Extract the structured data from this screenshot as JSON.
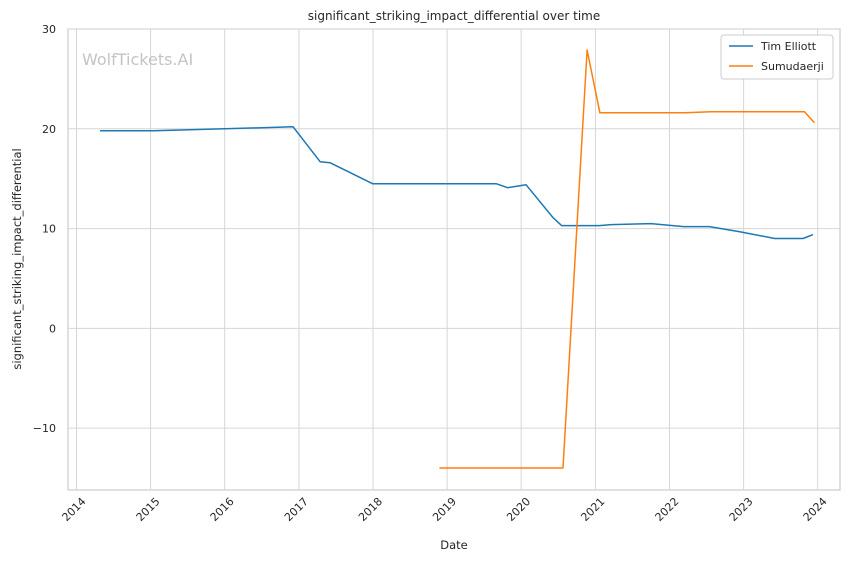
{
  "chart_data": {
    "type": "line",
    "title": "significant_striking_impact_differential over time",
    "xlabel": "Date",
    "ylabel": "significant_striking_impact_differential",
    "x_ticks": [
      "2014",
      "2015",
      "2016",
      "2017",
      "2018",
      "2019",
      "2020",
      "2021",
      "2022",
      "2023",
      "2024"
    ],
    "y_ticks": [
      -10,
      0,
      10,
      20,
      30
    ],
    "xlim": [
      "2013-11-20",
      "2024-04-20"
    ],
    "ylim": [
      -16.2,
      30
    ],
    "grid": true,
    "legend_position": "top-right",
    "watermark": "WolfTickets.AI",
    "series": [
      {
        "name": "Tim Elliott",
        "color": "#1f77b4",
        "points": [
          [
            "2014-04-26",
            19.8
          ],
          [
            "2015-01-18",
            19.8
          ],
          [
            "2016-01-01",
            20.0
          ],
          [
            "2016-12-03",
            20.2
          ],
          [
            "2017-04-15",
            16.7
          ],
          [
            "2017-06-03",
            16.6
          ],
          [
            "2017-12-30",
            14.5
          ],
          [
            "2019-08-31",
            14.5
          ],
          [
            "2019-10-26",
            14.1
          ],
          [
            "2020-01-25",
            14.4
          ],
          [
            "2020-06-06",
            11.1
          ],
          [
            "2020-07-18",
            10.3
          ],
          [
            "2021-01-20",
            10.3
          ],
          [
            "2021-03-20",
            10.4
          ],
          [
            "2021-10-02",
            10.5
          ],
          [
            "2022-03-12",
            10.2
          ],
          [
            "2022-07-16",
            10.2
          ],
          [
            "2022-12-10",
            9.7
          ],
          [
            "2023-06-03",
            9.0
          ],
          [
            "2023-10-21",
            9.0
          ],
          [
            "2023-12-09",
            9.4
          ]
        ]
      },
      {
        "name": "Sumudaerji",
        "color": "#ff7f0e",
        "points": [
          [
            "2018-11-24",
            -14.0
          ],
          [
            "2020-07-25",
            -14.0
          ],
          [
            "2020-11-21",
            27.9
          ],
          [
            "2021-01-23",
            21.6
          ],
          [
            "2022-03-19",
            21.6
          ],
          [
            "2022-07-23",
            21.7
          ],
          [
            "2023-10-28",
            21.7
          ],
          [
            "2023-12-16",
            20.6
          ]
        ]
      }
    ]
  }
}
